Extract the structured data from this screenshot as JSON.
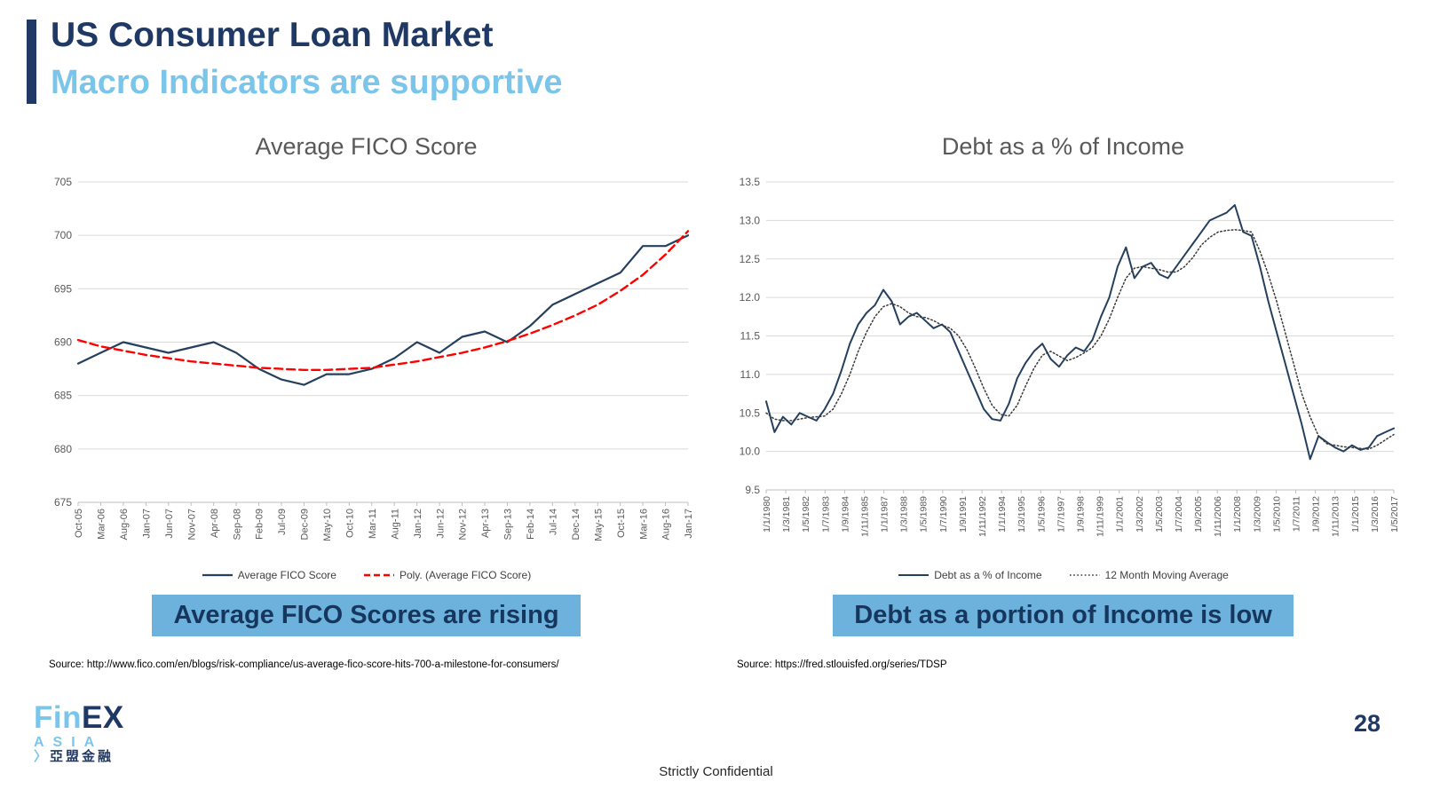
{
  "slide": {
    "title": "US Consumer Loan Market",
    "subtitle": "Macro Indicators are supportive",
    "page_number": "28",
    "footer_confidential": "Strictly Confidential",
    "logo": {
      "fin": "Fin",
      "ex": "EX",
      "asia": "ASIA",
      "chevron": "〉",
      "chinese": "亞盟金融"
    },
    "colors": {
      "navy": "#1f3864",
      "light_blue": "#7cc5ea",
      "callout_bg": "#6cb2dc",
      "line_navy": "#25405e",
      "poly_red": "#ff0000",
      "gridline": "#d9d9d9",
      "axis_text": "#595959"
    }
  },
  "chart_data": [
    {
      "type": "line",
      "title": "Average FICO Score",
      "callout": "Average FICO Scores are rising",
      "source": "Source: http://www.fico.com/en/blogs/risk-compliance/us-average-fico-score-hits-700-a-milestone-for-consumers/",
      "xlabel": "",
      "ylabel": "",
      "grid": true,
      "legend_position": "bottom",
      "ylim": [
        675,
        705
      ],
      "yticks": [
        "675",
        "680",
        "685",
        "690",
        "695",
        "700",
        "705"
      ],
      "categories": [
        "Oct-05",
        "Mar-06",
        "Aug-06",
        "Jan-07",
        "Jun-07",
        "Nov-07",
        "Apr-08",
        "Sep-08",
        "Feb-09",
        "Jul-09",
        "Dec-09",
        "May-10",
        "Oct-10",
        "Mar-11",
        "Aug-11",
        "Jan-12",
        "Jun-12",
        "Nov-12",
        "Apr-13",
        "Sep-13",
        "Feb-14",
        "Jul-14",
        "Dec-14",
        "May-15",
        "Oct-15",
        "Mar-16",
        "Aug-16",
        "Jan-17"
      ],
      "xtick_labels": [
        "Oct-05",
        "Mar-06",
        "Aug-06",
        "Jan-07",
        "Jun-07",
        "Nov-07",
        "Apr-08",
        "Sep-08",
        "Feb-09",
        "Jul-09",
        "Dec-09",
        "May-10",
        "Oct-10",
        "Mar-11",
        "Aug-11",
        "Jan-12",
        "Jun-12",
        "Nov-12",
        "Apr-13",
        "Sep-13",
        "Feb-14",
        "Jul-14",
        "Dec-14",
        "May-15",
        "Oct-15",
        "Mar-16",
        "Aug-16",
        "Jan-17"
      ],
      "series": [
        {
          "name": "Average FICO Score",
          "style": "solid",
          "color": "#25405e",
          "width": 2.2,
          "values": [
            688,
            689,
            690,
            689.5,
            689,
            689.5,
            690,
            689,
            687.5,
            686.5,
            686,
            687,
            687,
            687.5,
            688.5,
            690,
            689,
            690.5,
            691,
            690,
            691.5,
            693.5,
            694.5,
            695.5,
            696.5,
            699,
            699,
            700
          ]
        },
        {
          "name": "Poly. (Average FICO Score)",
          "style": "dashed",
          "color": "#ff0000",
          "width": 2.4,
          "values": [
            690.2,
            689.6,
            689.2,
            688.8,
            688.5,
            688.2,
            688,
            687.8,
            687.6,
            687.5,
            687.4,
            687.4,
            687.5,
            687.6,
            687.9,
            688.2,
            688.6,
            689,
            689.5,
            690.1,
            690.8,
            691.6,
            692.5,
            693.5,
            694.8,
            696.3,
            698.2,
            700.4
          ]
        }
      ]
    },
    {
      "type": "line",
      "title": "Debt as a % of Income",
      "callout": "Debt as a portion of Income is low",
      "source": "Source: https://fred.stlouisfed.org/series/TDSP",
      "xlabel": "",
      "ylabel": "",
      "grid": true,
      "legend_position": "bottom",
      "ylim": [
        9.5,
        13.5
      ],
      "yticks": [
        "9.5",
        "10.0",
        "10.5",
        "11.0",
        "11.5",
        "12.0",
        "12.5",
        "13.0",
        "13.5"
      ],
      "x_range_note": "semi-annual estimates 1980 to 2017",
      "xtick_labels": [
        "1/1/1980",
        "1/3/1981",
        "1/5/1982",
        "1/7/1983",
        "1/9/1984",
        "1/11/1985",
        "1/1/1987",
        "1/3/1988",
        "1/5/1989",
        "1/7/1990",
        "1/9/1991",
        "1/11/1992",
        "1/1/1994",
        "1/3/1995",
        "1/5/1996",
        "1/7/1997",
        "1/9/1998",
        "1/11/1999",
        "1/1/2001",
        "1/3/2002",
        "1/5/2003",
        "1/7/2004",
        "1/9/2005",
        "1/11/2006",
        "1/1/2008",
        "1/3/2009",
        "1/5/2010",
        "1/7/2011",
        "1/9/2012",
        "1/11/2013",
        "1/1/2015",
        "1/3/2016",
        "1/5/2017"
      ],
      "series": [
        {
          "name": "Debt as a % of Income",
          "style": "solid",
          "color": "#25405e",
          "width": 2,
          "values": [
            10.65,
            10.25,
            10.45,
            10.35,
            10.5,
            10.45,
            10.4,
            10.55,
            10.75,
            11.05,
            11.4,
            11.65,
            11.8,
            11.9,
            12.1,
            11.95,
            11.65,
            11.75,
            11.8,
            11.7,
            11.6,
            11.65,
            11.55,
            11.3,
            11.05,
            10.8,
            10.55,
            10.42,
            10.4,
            10.62,
            10.95,
            11.15,
            11.3,
            11.4,
            11.2,
            11.1,
            11.25,
            11.35,
            11.3,
            11.45,
            11.75,
            12.0,
            12.4,
            12.65,
            12.25,
            12.4,
            12.45,
            12.3,
            12.25,
            12.4,
            12.55,
            12.7,
            12.85,
            13.0,
            13.05,
            13.1,
            13.2,
            12.85,
            12.8,
            12.4,
            11.95,
            11.55,
            11.15,
            10.75,
            10.35,
            9.9,
            10.2,
            10.12,
            10.05,
            10.0,
            10.08,
            10.02,
            10.05,
            10.2,
            10.25,
            10.3
          ]
        },
        {
          "name": "12 Month Moving Average",
          "style": "dotted",
          "color": "#3a3a3a",
          "width": 1.5,
          "values": [
            10.5,
            10.42,
            10.4,
            10.4,
            10.42,
            10.44,
            10.45,
            10.46,
            10.55,
            10.75,
            11.0,
            11.3,
            11.55,
            11.75,
            11.88,
            11.92,
            11.88,
            11.8,
            11.75,
            11.74,
            11.7,
            11.64,
            11.6,
            11.5,
            11.32,
            11.08,
            10.82,
            10.6,
            10.48,
            10.46,
            10.6,
            10.85,
            11.08,
            11.25,
            11.3,
            11.24,
            11.18,
            11.22,
            11.28,
            11.35,
            11.5,
            11.72,
            12.0,
            12.25,
            12.38,
            12.4,
            12.38,
            12.36,
            12.33,
            12.33,
            12.4,
            12.52,
            12.68,
            12.78,
            12.85,
            12.87,
            12.88,
            12.87,
            12.85,
            12.6,
            12.3,
            11.95,
            11.55,
            11.15,
            10.75,
            10.45,
            10.2,
            10.1,
            10.08,
            10.06,
            10.05,
            10.04,
            10.03,
            10.08,
            10.15,
            10.22
          ]
        }
      ]
    }
  ]
}
